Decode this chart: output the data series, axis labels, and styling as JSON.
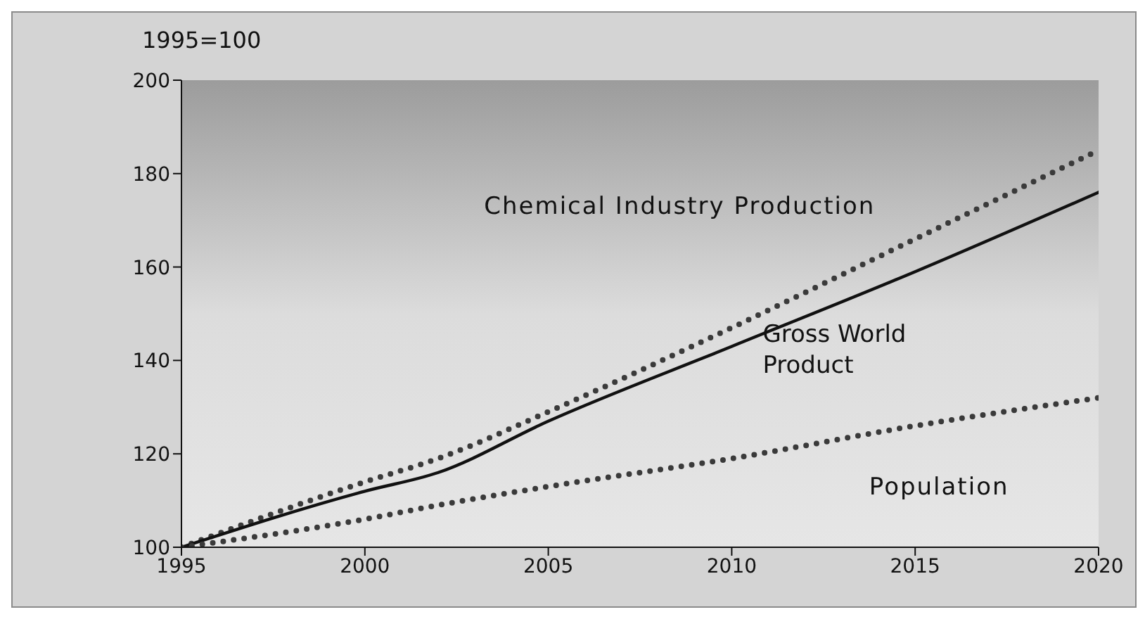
{
  "chart_data": {
    "type": "line",
    "ylabel": "1995=100",
    "x": [
      1995,
      2000,
      2002,
      2005,
      2010,
      2015,
      2020
    ],
    "series": [
      {
        "name": "Chemical Industry Production",
        "color": "#3a3a3a",
        "line_style": "dotted",
        "values": [
          100,
          114,
          119,
          129,
          147,
          166,
          185
        ]
      },
      {
        "name": "Gross World\nProduct",
        "color": "#111111",
        "line_style": "solid",
        "values": [
          100,
          112,
          116,
          127,
          143,
          159,
          176
        ]
      },
      {
        "name": "Population",
        "color": "#3a3a3a",
        "line_style": "dotted",
        "values": [
          100,
          106,
          109,
          113,
          119,
          126,
          132
        ]
      }
    ],
    "xlim": [
      1995,
      2020
    ],
    "xticks": [
      1995,
      2000,
      2005,
      2010,
      2015,
      2020
    ],
    "ylim": [
      100,
      200
    ],
    "yticks": [
      100,
      120,
      140,
      160,
      180,
      200
    ],
    "grid": false,
    "marker": "none"
  }
}
